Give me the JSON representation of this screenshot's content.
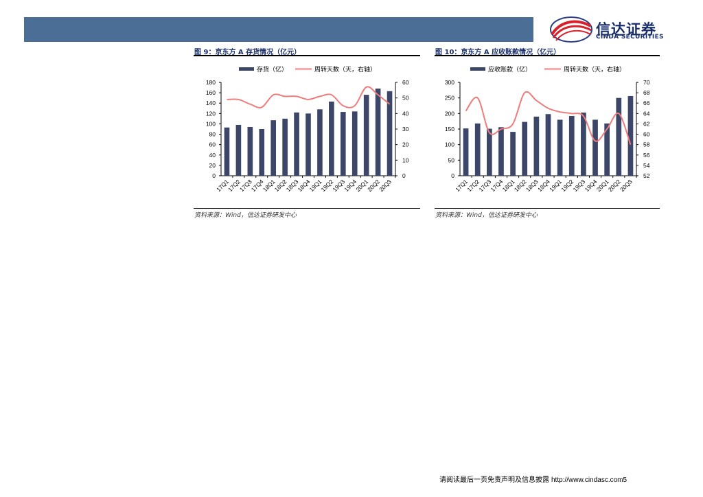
{
  "header": {
    "logo_cn": "信达证券",
    "logo_en": "CINDA SECURITIES",
    "brand_color": "#4a6e96"
  },
  "figures": [
    {
      "title": "图 9：京东方 A 存货情况（亿元）",
      "source": "资料来源：Wind，信达证券研发中心"
    },
    {
      "title": "图 10：京东方 A 应收账款情况（亿元）",
      "source": "资料来源：Wind，信达证券研发中心"
    }
  ],
  "chart_data": [
    {
      "type": "bar",
      "categories": [
        "17Q1",
        "17Q2",
        "17Q3",
        "17Q4",
        "18Q1",
        "18Q2",
        "18Q3",
        "18Q4",
        "19Q1",
        "19Q2",
        "19Q3",
        "19Q4",
        "20Q1",
        "20Q2",
        "20Q3"
      ],
      "series": [
        {
          "name": "存货（亿）",
          "kind": "bar",
          "axis": "left",
          "color": "#3b4668",
          "values": [
            93,
            98,
            94,
            90,
            107,
            110,
            122,
            120,
            128,
            143,
            123,
            124,
            156,
            168,
            163
          ]
        },
        {
          "name": "周转天数（天，右轴）",
          "kind": "line",
          "axis": "right",
          "color": "#f07b7b",
          "values": [
            49,
            49,
            46,
            44,
            52,
            51,
            51,
            49,
            51,
            52,
            45,
            45,
            57,
            52,
            46
          ]
        }
      ],
      "ylim": [
        0,
        180
      ],
      "yticks": [
        0,
        20,
        40,
        60,
        80,
        100,
        120,
        140,
        160,
        180
      ],
      "y2lim": [
        0,
        60
      ],
      "y2ticks": [
        0,
        10,
        20,
        30,
        40,
        50,
        60
      ],
      "legend": "top"
    },
    {
      "type": "bar",
      "categories": [
        "17Q1",
        "17Q2",
        "17Q3",
        "17Q4",
        "18Q1",
        "18Q2",
        "18Q3",
        "18Q4",
        "19Q1",
        "19Q2",
        "19Q3",
        "19Q4",
        "20Q1",
        "20Q2",
        "20Q3"
      ],
      "series": [
        {
          "name": "应收账款（亿）",
          "kind": "bar",
          "axis": "left",
          "color": "#3b4668",
          "values": [
            152,
            168,
            151,
            156,
            141,
            173,
            190,
            198,
            180,
            192,
            203,
            180,
            168,
            250,
            256
          ]
        },
        {
          "name": "周转天数（天，右轴）",
          "kind": "line",
          "axis": "right",
          "color": "#f07b7b",
          "values": [
            64.5,
            67,
            60.3,
            61,
            62,
            68,
            66.5,
            65,
            64.3,
            64,
            63.5,
            58.7,
            61,
            64,
            58
          ]
        }
      ],
      "ylim": [
        0,
        300
      ],
      "yticks": [
        0,
        50,
        100,
        150,
        200,
        250,
        300
      ],
      "y2lim": [
        52,
        70
      ],
      "y2ticks": [
        52,
        54,
        56,
        58,
        60,
        62,
        64,
        66,
        68,
        70
      ],
      "legend": "top"
    }
  ],
  "footer": {
    "disclaimer": "请阅读最后一页免责声明及信息披露",
    "url": "http://www.cindasc.com",
    "page": "5"
  }
}
